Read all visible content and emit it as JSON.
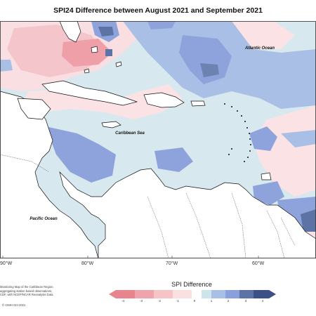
{
  "title": "SPI24 Difference between August 2021 and September 2021",
  "labels": {
    "atlantic": "Atlantic Ocean",
    "caribbean": "Caribbean Sea",
    "pacific": "Pacific Ocean"
  },
  "longitudes": [
    "90°W",
    "80°W",
    "70°W",
    "60°W"
  ],
  "credits": {
    "line1": "Monitoring Map of the Caribbean Region.",
    "line2": "aggregating station based observations,",
    "line3": "CDF, with NCEP/NCAR Reanalysis Data.",
    "copyright": "© CIMH Oct-2021"
  },
  "legend": {
    "title": "SPI Difference",
    "ticks": [
      "-4",
      "-3",
      "-2",
      "-1",
      "0",
      "1",
      "2",
      "3",
      "4"
    ],
    "colors": {
      "neg4": "#e8848e",
      "neg3": "#f0a3aa",
      "neg2": "#f6c3c7",
      "neg1": "#fbe0e2",
      "zero_lo": "#ffffff",
      "zero_hi": "#cfe3ea",
      "pos1": "#a8bfe6",
      "pos2": "#8a9fde",
      "pos3": "#5d73a6",
      "pos4": "#3c4f86"
    }
  },
  "colors": {
    "land": "#ffffff",
    "coast": "#111111",
    "background_ocean": "#dceef2"
  }
}
